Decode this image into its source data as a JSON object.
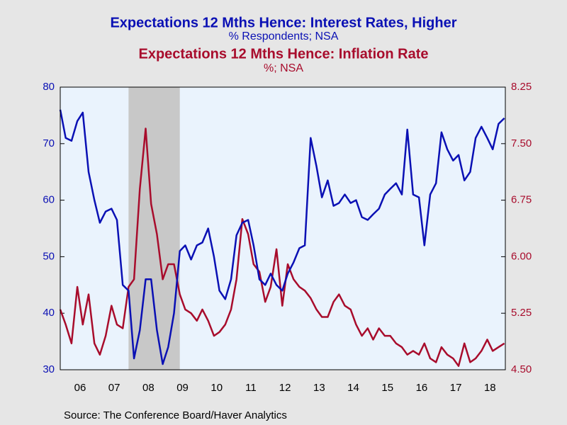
{
  "chart_data": {
    "type": "line",
    "source": "Source:  The Conference Board/Haver Analytics",
    "series": [
      {
        "name": "Expectations 12 Mths Hence: Interest Rates, Higher",
        "unit": "% Respondents; NSA",
        "color": "#0a10b4",
        "axis": "y",
        "values": [
          76,
          71,
          70.5,
          74,
          75.5,
          65,
          60,
          56,
          58,
          58.5,
          56.5,
          45,
          44,
          32,
          37,
          46,
          46,
          37,
          31,
          34,
          40,
          51,
          52,
          49.5,
          52,
          52.5,
          55,
          50,
          44,
          42.5,
          46,
          53.8,
          56,
          56.5,
          52,
          46,
          45,
          47,
          45,
          44,
          47,
          49,
          51.5,
          52,
          71,
          66,
          60.5,
          63.5,
          59,
          59.5,
          61,
          59.5,
          60,
          57,
          56.5,
          57.5,
          58.5,
          61,
          62,
          63,
          61,
          72.5,
          61,
          60.5,
          52,
          61,
          63,
          72,
          69,
          67,
          68,
          63.5,
          65,
          71,
          73,
          71,
          69,
          73.5,
          74.5
        ]
      },
      {
        "name": "Expectations 12 Mths Hence: Inflation Rate",
        "unit": "%; NSA",
        "color": "#a80c2c",
        "axis": "y2",
        "values": [
          5.3,
          5.1,
          4.85,
          5.6,
          5.1,
          5.5,
          4.85,
          4.7,
          4.95,
          5.35,
          5.1,
          5.05,
          5.6,
          5.7,
          6.9,
          7.7,
          6.7,
          6.3,
          5.7,
          5.9,
          5.9,
          5.5,
          5.3,
          5.25,
          5.15,
          5.3,
          5.15,
          4.95,
          5.0,
          5.1,
          5.3,
          5.7,
          6.5,
          6.3,
          5.9,
          5.8,
          5.4,
          5.6,
          6.1,
          5.35,
          5.9,
          5.7,
          5.6,
          5.55,
          5.45,
          5.3,
          5.2,
          5.2,
          5.4,
          5.5,
          5.35,
          5.3,
          5.1,
          4.95,
          5.05,
          4.9,
          5.05,
          4.95,
          4.95,
          4.85,
          4.8,
          4.7,
          4.75,
          4.7,
          4.85,
          4.65,
          4.6,
          4.8,
          4.7,
          4.65,
          4.55,
          4.85,
          4.6,
          4.65,
          4.75,
          4.9,
          4.75,
          4.8,
          4.85
        ]
      }
    ],
    "x": [
      2005.92,
      2006.08,
      2006.25,
      2006.42,
      2006.58,
      2006.75,
      2006.92,
      2007.08,
      2007.25,
      2007.42,
      2007.58,
      2007.75,
      2007.92,
      2008.08,
      2008.25,
      2008.42,
      2008.58,
      2008.75,
      2008.92,
      2009.08,
      2009.25,
      2009.42,
      2009.58,
      2009.75,
      2009.92,
      2010.08,
      2010.25,
      2010.42,
      2010.58,
      2010.75,
      2010.92,
      2011.08,
      2011.25,
      2011.42,
      2011.58,
      2011.75,
      2011.92,
      2012.08,
      2012.25,
      2012.42,
      2012.58,
      2012.75,
      2012.92,
      2013.08,
      2013.25,
      2013.42,
      2013.58,
      2013.75,
      2013.92,
      2014.08,
      2014.25,
      2014.42,
      2014.58,
      2014.75,
      2014.92,
      2015.08,
      2015.25,
      2015.42,
      2015.58,
      2015.75,
      2015.92,
      2016.08,
      2016.25,
      2016.42,
      2016.58,
      2016.75,
      2016.92,
      2017.08,
      2017.25,
      2017.42,
      2017.58,
      2017.75,
      2017.92,
      2018.08,
      2018.25,
      2018.42,
      2018.58,
      2018.75,
      2018.92
    ],
    "xlim": [
      2005.92,
      2018.95
    ],
    "xticks": [
      {
        "value": 2006.5,
        "label": "06"
      },
      {
        "value": 2007.5,
        "label": "07"
      },
      {
        "value": 2008.5,
        "label": "08"
      },
      {
        "value": 2009.5,
        "label": "09"
      },
      {
        "value": 2010.5,
        "label": "10"
      },
      {
        "value": 2011.5,
        "label": "11"
      },
      {
        "value": 2012.5,
        "label": "12"
      },
      {
        "value": 2013.5,
        "label": "13"
      },
      {
        "value": 2014.5,
        "label": "14"
      },
      {
        "value": 2015.5,
        "label": "15"
      },
      {
        "value": 2016.5,
        "label": "16"
      },
      {
        "value": 2017.5,
        "label": "17"
      },
      {
        "value": 2018.5,
        "label": "18"
      }
    ],
    "ylim": [
      30,
      80
    ],
    "yticks": [
      30,
      40,
      50,
      60,
      70,
      80
    ],
    "y2lim": [
      4.5,
      8.25
    ],
    "y2ticks": [
      {
        "value": 4.5,
        "label": "4.50"
      },
      {
        "value": 5.25,
        "label": "5.25"
      },
      {
        "value": 6,
        "label": "6.00"
      },
      {
        "value": 6.75,
        "label": "6.75"
      },
      {
        "value": 7.5,
        "label": "7.50"
      },
      {
        "value": 8.25,
        "label": "8.25"
      }
    ],
    "shaded": [
      [
        2007.92,
        2009.42
      ]
    ],
    "grid": false
  }
}
